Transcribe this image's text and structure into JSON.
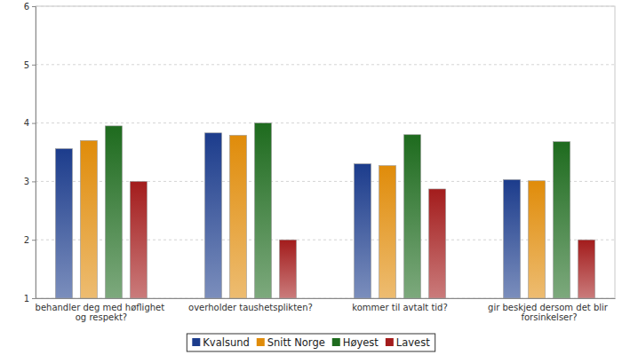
{
  "chart_data": {
    "type": "bar",
    "categories": [
      "behandler deg med høflighet og respekt?",
      "overholder taushetsplikten?",
      "kommer til avtalt tid?",
      "gir beskjed dersom det blir forsinkelser?"
    ],
    "series": [
      {
        "name": "Kvalsund",
        "color": "#1c3c8c",
        "values": [
          3.56,
          3.83,
          3.3,
          3.03
        ]
      },
      {
        "name": "Snitt Norge",
        "color": "#e08c0a",
        "values": [
          3.7,
          3.79,
          3.27,
          3.01
        ]
      },
      {
        "name": "Høyest",
        "color": "#1e6b1e",
        "values": [
          3.95,
          4.0,
          3.8,
          3.68
        ]
      },
      {
        "name": "Lavest",
        "color": "#a31c1c",
        "values": [
          3.0,
          2.0,
          2.87,
          2.0
        ]
      }
    ],
    "ylim": [
      1,
      6
    ],
    "yticks": [
      1,
      2,
      3,
      4,
      5,
      6
    ],
    "grid": true,
    "legend": "bottom"
  }
}
